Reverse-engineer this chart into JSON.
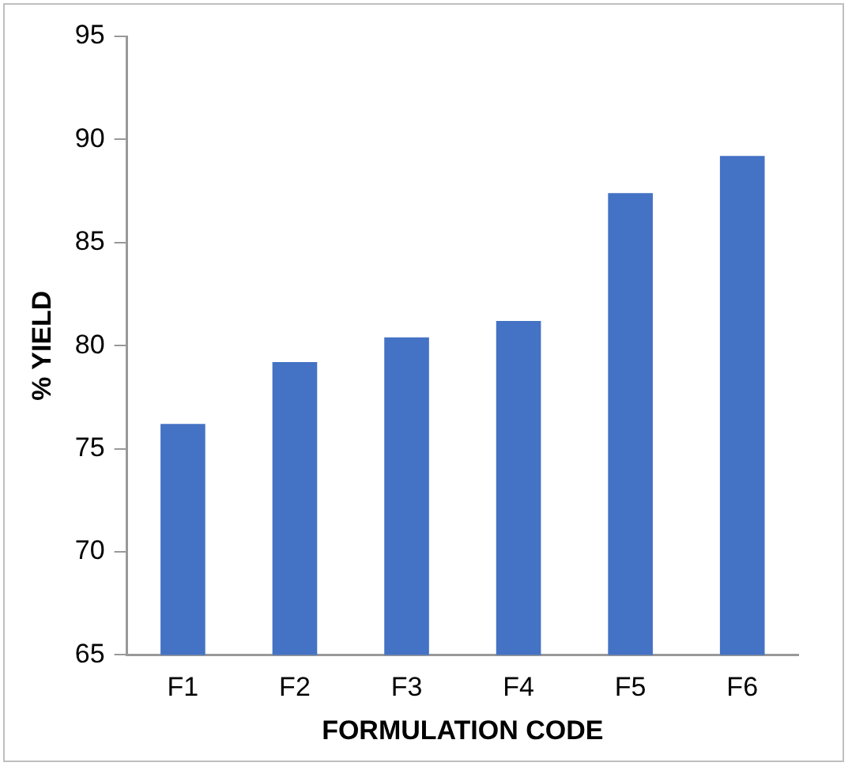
{
  "chart_data": {
    "type": "bar",
    "xlabel": "FORMULATION CODE",
    "ylabel": "% YIELD",
    "categories": [
      "F1",
      "F2",
      "F3",
      "F4",
      "F5",
      "F6"
    ],
    "values": [
      76.2,
      79.2,
      80.4,
      81.2,
      87.4,
      89.2
    ],
    "color": "#4472c4",
    "ylim": [
      65,
      95
    ],
    "yticks": [
      65,
      70,
      75,
      80,
      85,
      90,
      95
    ],
    "grid": false,
    "legend": false
  }
}
